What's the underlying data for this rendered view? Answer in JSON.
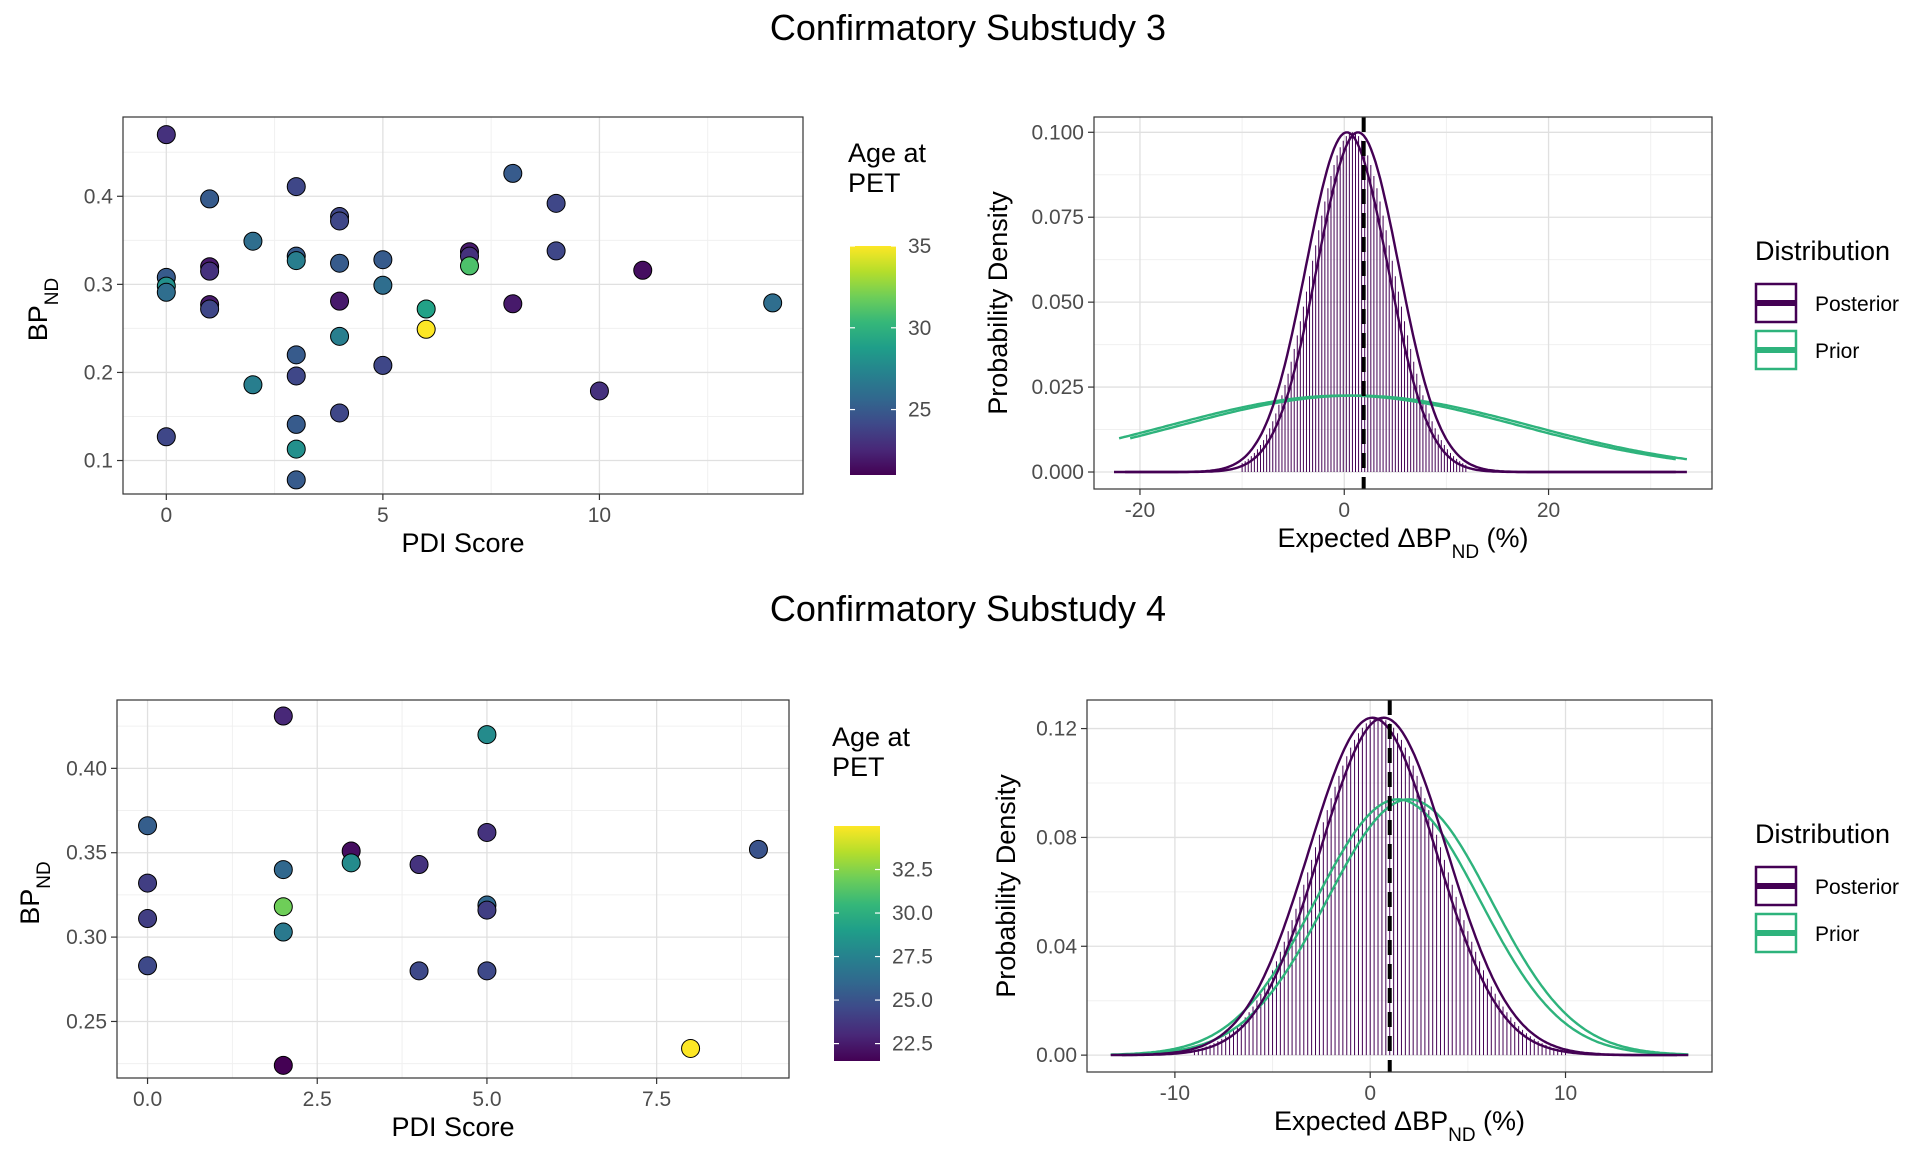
{
  "colors": {
    "posterior": "#440154",
    "prior": "#2eb37c",
    "viridis": [
      "#440154",
      "#482878",
      "#3e4989",
      "#31688e",
      "#26828e",
      "#1f9e89",
      "#35b779",
      "#6ece58",
      "#b5de2b",
      "#fde725"
    ]
  },
  "chart_data": [
    {
      "id": "s3",
      "title": "Confirmatory Substudy 3",
      "scatter": {
        "type": "scatter",
        "xlabel": "PDI Score",
        "ylabel_main": "BP",
        "ylabel_sub": "ND",
        "xlim": [
          -1,
          14.7
        ],
        "ylim": [
          0.062,
          0.49
        ],
        "xticks": [
          0,
          5,
          10
        ],
        "yticks": [
          0.1,
          0.2,
          0.3,
          0.4
        ],
        "ytick_labels": [
          "0.1",
          "0.2",
          "0.3",
          "0.4"
        ],
        "xgrid_minor": [
          2.5,
          7.5,
          12.5
        ],
        "ygrid_minor": [
          0.15,
          0.25,
          0.35,
          0.45
        ],
        "color_title_line1": "Age at",
        "color_title_line2": "PET",
        "color_range": [
          21,
          35
        ],
        "color_ticks": [
          25,
          30,
          35
        ],
        "points": [
          {
            "x": 0,
            "y": 0.47,
            "age": 23
          },
          {
            "x": 0,
            "y": 0.308,
            "age": 25
          },
          {
            "x": 0,
            "y": 0.298,
            "age": 28
          },
          {
            "x": 0,
            "y": 0.291,
            "age": 26
          },
          {
            "x": 0,
            "y": 0.127,
            "age": 24
          },
          {
            "x": 1,
            "y": 0.397,
            "age": 25
          },
          {
            "x": 1,
            "y": 0.32,
            "age": 22
          },
          {
            "x": 1,
            "y": 0.315,
            "age": 23
          },
          {
            "x": 1,
            "y": 0.277,
            "age": 22
          },
          {
            "x": 1,
            "y": 0.272,
            "age": 24
          },
          {
            "x": 2,
            "y": 0.349,
            "age": 26
          },
          {
            "x": 2,
            "y": 0.186,
            "age": 27
          },
          {
            "x": 3,
            "y": 0.411,
            "age": 24
          },
          {
            "x": 3,
            "y": 0.332,
            "age": 25
          },
          {
            "x": 3,
            "y": 0.327,
            "age": 27
          },
          {
            "x": 3,
            "y": 0.22,
            "age": 25
          },
          {
            "x": 3,
            "y": 0.196,
            "age": 24
          },
          {
            "x": 3,
            "y": 0.141,
            "age": 25
          },
          {
            "x": 3,
            "y": 0.113,
            "age": 28
          },
          {
            "x": 3,
            "y": 0.078,
            "age": 25
          },
          {
            "x": 4,
            "y": 0.377,
            "age": 24
          },
          {
            "x": 4,
            "y": 0.372,
            "age": 24
          },
          {
            "x": 4,
            "y": 0.324,
            "age": 25
          },
          {
            "x": 4,
            "y": 0.281,
            "age": 22
          },
          {
            "x": 4,
            "y": 0.241,
            "age": 27
          },
          {
            "x": 4,
            "y": 0.154,
            "age": 24
          },
          {
            "x": 5,
            "y": 0.328,
            "age": 25
          },
          {
            "x": 5,
            "y": 0.299,
            "age": 26
          },
          {
            "x": 5,
            "y": 0.208,
            "age": 24
          },
          {
            "x": 6,
            "y": 0.272,
            "age": 29
          },
          {
            "x": 6,
            "y": 0.249,
            "age": 35
          },
          {
            "x": 7,
            "y": 0.337,
            "age": 22
          },
          {
            "x": 7,
            "y": 0.332,
            "age": 23
          },
          {
            "x": 7,
            "y": 0.321,
            "age": 31
          },
          {
            "x": 8,
            "y": 0.426,
            "age": 25
          },
          {
            "x": 8,
            "y": 0.278,
            "age": 22
          },
          {
            "x": 9,
            "y": 0.392,
            "age": 24
          },
          {
            "x": 9,
            "y": 0.338,
            "age": 24
          },
          {
            "x": 10,
            "y": 0.179,
            "age": 23
          },
          {
            "x": 11,
            "y": 0.316,
            "age": 21.5
          },
          {
            "x": 14,
            "y": 0.279,
            "age": 26
          }
        ]
      },
      "density": {
        "type": "area",
        "xlabel_main": "Expected ΔBP",
        "xlabel_sub": "ND",
        "xlabel_tail": " (%)",
        "ylabel": "Probability Density",
        "xlim": [
          -24.5,
          36
        ],
        "ylim": [
          -0.005,
          0.1045
        ],
        "xticks": [
          -20,
          0,
          20
        ],
        "yticks": [
          0,
          0.025,
          0.05,
          0.075,
          0.1
        ],
        "ytick_labels": [
          "0.000",
          "0.025",
          "0.050",
          "0.075",
          "0.100"
        ],
        "xgrid_minor": [
          -10,
          10,
          30
        ],
        "ygrid_minor": [
          0.0125,
          0.0375,
          0.0625,
          0.0875
        ],
        "posterior": {
          "mean": 0.8,
          "sd": 4.0,
          "peak": 0.1,
          "x_range": [
            -22,
            33
          ]
        },
        "prior": {
          "mean": 0.5,
          "sd": 17.2,
          "peak": 0.0225,
          "x_range": [
            -21.5,
            33
          ]
        },
        "hist_range": [
          -10,
          12
        ],
        "hist_bin_width": 0.3,
        "vline": 1.9,
        "legend_title": "Distribution",
        "legend_items": [
          "Posterior",
          "Prior"
        ]
      }
    },
    {
      "id": "s4",
      "title": "Confirmatory Substudy 4",
      "scatter": {
        "type": "scatter",
        "xlabel": "PDI Score",
        "ylabel_main": "BP",
        "ylabel_sub": "ND",
        "xlim": [
          -0.45,
          9.45
        ],
        "ylim": [
          0.2165,
          0.4405
        ],
        "xticks": [
          0,
          2.5,
          5,
          7.5
        ],
        "xtick_labels": [
          "0.0",
          "2.5",
          "5.0",
          "7.5"
        ],
        "yticks": [
          0.25,
          0.3,
          0.35,
          0.4
        ],
        "ytick_labels": [
          "0.25",
          "0.30",
          "0.35",
          "0.40"
        ],
        "xgrid_minor": [
          1.25,
          3.75,
          6.25,
          8.75
        ],
        "ygrid_minor": [
          0.225,
          0.275,
          0.325,
          0.375,
          0.425
        ],
        "color_title_line1": "Age at",
        "color_title_line2": "PET",
        "color_range": [
          21.5,
          35
        ],
        "color_ticks": [
          22.5,
          25,
          27.5,
          30,
          32.5
        ],
        "color_tick_labels": [
          "22.5",
          "25.0",
          "27.5",
          "30.0",
          "32.5"
        ],
        "points": [
          {
            "x": 0,
            "y": 0.366,
            "age": 25.5
          },
          {
            "x": 0,
            "y": 0.332,
            "age": 24
          },
          {
            "x": 0,
            "y": 0.311,
            "age": 24
          },
          {
            "x": 0,
            "y": 0.283,
            "age": 24.5
          },
          {
            "x": 2,
            "y": 0.431,
            "age": 23
          },
          {
            "x": 2,
            "y": 0.34,
            "age": 26
          },
          {
            "x": 2,
            "y": 0.318,
            "age": 32
          },
          {
            "x": 2,
            "y": 0.303,
            "age": 27
          },
          {
            "x": 2,
            "y": 0.224,
            "age": 21.5
          },
          {
            "x": 3,
            "y": 0.351,
            "age": 22
          },
          {
            "x": 3,
            "y": 0.344,
            "age": 28
          },
          {
            "x": 4,
            "y": 0.343,
            "age": 23.5
          },
          {
            "x": 4,
            "y": 0.28,
            "age": 24.5
          },
          {
            "x": 5,
            "y": 0.42,
            "age": 28
          },
          {
            "x": 5,
            "y": 0.362,
            "age": 23.5
          },
          {
            "x": 5,
            "y": 0.319,
            "age": 26
          },
          {
            "x": 5,
            "y": 0.316,
            "age": 24
          },
          {
            "x": 5,
            "y": 0.28,
            "age": 24.5
          },
          {
            "x": 8,
            "y": 0.234,
            "age": 35
          },
          {
            "x": 9,
            "y": 0.352,
            "age": 25
          }
        ]
      },
      "density": {
        "type": "area",
        "xlabel_main": "Expected ΔBP",
        "xlabel_sub": "ND",
        "xlabel_tail": " (%)",
        "ylabel": "Probability Density",
        "xlim": [
          -14.5,
          17.5
        ],
        "ylim": [
          -0.0062,
          0.1305
        ],
        "xticks": [
          -10,
          0,
          10
        ],
        "yticks": [
          0,
          0.04,
          0.08,
          0.12
        ],
        "ytick_labels": [
          "0.00",
          "0.04",
          "0.08",
          "0.12"
        ],
        "xgrid_minor": [
          -5,
          5,
          15
        ],
        "ygrid_minor": [
          0.02,
          0.06,
          0.1
        ],
        "posterior": {
          "mean": 0.4,
          "sd": 3.25,
          "peak": 0.124,
          "x_range": [
            -13,
            16
          ]
        },
        "prior": {
          "mean": 1.7,
          "sd": 4.2,
          "peak": 0.094,
          "x_range": [
            -13,
            16
          ]
        },
        "hist_range": [
          -9,
          10
        ],
        "hist_bin_width": 0.2,
        "vline": 1.0,
        "legend_title": "Distribution",
        "legend_items": [
          "Posterior",
          "Prior"
        ]
      }
    }
  ]
}
